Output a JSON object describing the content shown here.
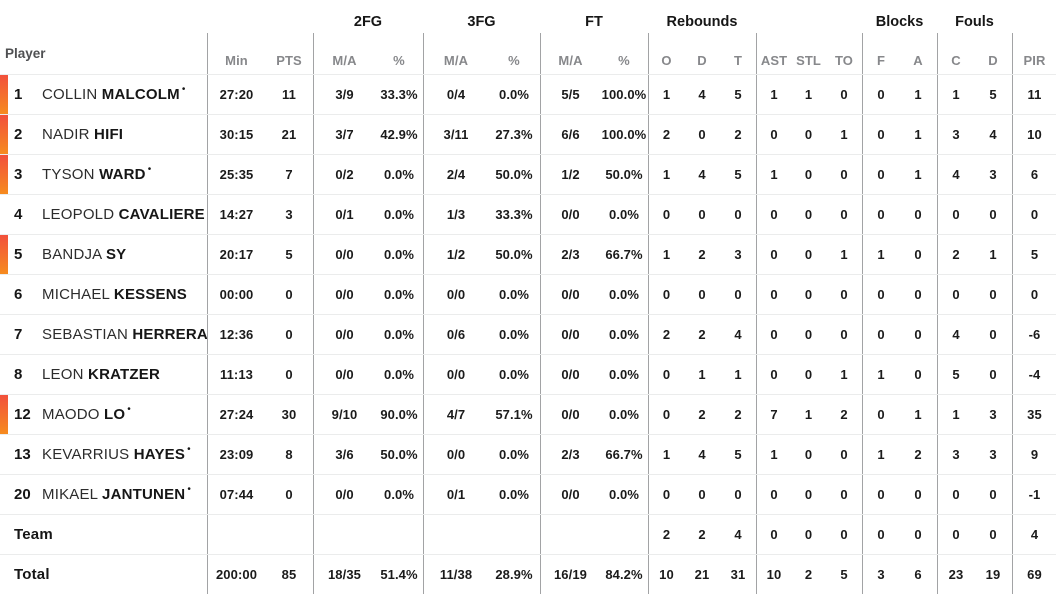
{
  "table": {
    "player_col_label": "Player",
    "starter_mark": "•",
    "groups": [
      {
        "label": "2FG"
      },
      {
        "label": "3FG"
      },
      {
        "label": "FT"
      },
      {
        "label": "Rebounds"
      },
      {
        "label": "Blocks"
      },
      {
        "label": "Fouls"
      }
    ],
    "columns": {
      "min": "Min",
      "pts": "PTS",
      "ma": "M/A",
      "pct": "%",
      "o": "O",
      "d": "D",
      "t": "T",
      "ast": "AST",
      "stl": "STL",
      "to": "TO",
      "bf": "F",
      "ba": "A",
      "fc": "C",
      "fd": "D",
      "pir": "PIR"
    }
  },
  "colors": {
    "accent_orange_top": "#f2503c",
    "accent_orange_bottom": "#f68b1f"
  },
  "rows": [
    {
      "number": "1",
      "first": "COLLIN",
      "last": "MALCOLM",
      "starter": true,
      "on_court": true,
      "min": "27:20",
      "pts": "11",
      "fg2": "3/9",
      "fg2p": "33.3%",
      "fg3": "0/4",
      "fg3p": "0.0%",
      "ft": "5/5",
      "ftp": "100.0%",
      "ro": "1",
      "rd": "4",
      "rt": "5",
      "ast": "1",
      "stl": "1",
      "to": "0",
      "bf": "0",
      "ba": "1",
      "fc": "1",
      "fd": "5",
      "pir": "11"
    },
    {
      "number": "2",
      "first": "NADIR",
      "last": "HIFI",
      "starter": false,
      "on_court": true,
      "min": "30:15",
      "pts": "21",
      "fg2": "3/7",
      "fg2p": "42.9%",
      "fg3": "3/11",
      "fg3p": "27.3%",
      "ft": "6/6",
      "ftp": "100.0%",
      "ro": "2",
      "rd": "0",
      "rt": "2",
      "ast": "0",
      "stl": "0",
      "to": "1",
      "bf": "0",
      "ba": "1",
      "fc": "3",
      "fd": "4",
      "pir": "10"
    },
    {
      "number": "3",
      "first": "TYSON",
      "last": "WARD",
      "starter": true,
      "on_court": true,
      "min": "25:35",
      "pts": "7",
      "fg2": "0/2",
      "fg2p": "0.0%",
      "fg3": "2/4",
      "fg3p": "50.0%",
      "ft": "1/2",
      "ftp": "50.0%",
      "ro": "1",
      "rd": "4",
      "rt": "5",
      "ast": "1",
      "stl": "0",
      "to": "0",
      "bf": "0",
      "ba": "1",
      "fc": "4",
      "fd": "3",
      "pir": "6"
    },
    {
      "number": "4",
      "first": "LEOPOLD",
      "last": "CAVALIERE",
      "starter": false,
      "on_court": false,
      "min": "14:27",
      "pts": "3",
      "fg2": "0/1",
      "fg2p": "0.0%",
      "fg3": "1/3",
      "fg3p": "33.3%",
      "ft": "0/0",
      "ftp": "0.0%",
      "ro": "0",
      "rd": "0",
      "rt": "0",
      "ast": "0",
      "stl": "0",
      "to": "0",
      "bf": "0",
      "ba": "0",
      "fc": "0",
      "fd": "0",
      "pir": "0"
    },
    {
      "number": "5",
      "first": "BANDJA",
      "last": "SY",
      "starter": false,
      "on_court": true,
      "min": "20:17",
      "pts": "5",
      "fg2": "0/0",
      "fg2p": "0.0%",
      "fg3": "1/2",
      "fg3p": "50.0%",
      "ft": "2/3",
      "ftp": "66.7%",
      "ro": "1",
      "rd": "2",
      "rt": "3",
      "ast": "0",
      "stl": "0",
      "to": "1",
      "bf": "1",
      "ba": "0",
      "fc": "2",
      "fd": "1",
      "pir": "5"
    },
    {
      "number": "6",
      "first": "MICHAEL",
      "last": "KESSENS",
      "starter": false,
      "on_court": false,
      "min": "00:00",
      "pts": "0",
      "fg2": "0/0",
      "fg2p": "0.0%",
      "fg3": "0/0",
      "fg3p": "0.0%",
      "ft": "0/0",
      "ftp": "0.0%",
      "ro": "0",
      "rd": "0",
      "rt": "0",
      "ast": "0",
      "stl": "0",
      "to": "0",
      "bf": "0",
      "ba": "0",
      "fc": "0",
      "fd": "0",
      "pir": "0"
    },
    {
      "number": "7",
      "first": "SEBASTIAN",
      "last": "HERRERA",
      "starter": false,
      "on_court": false,
      "min": "12:36",
      "pts": "0",
      "fg2": "0/0",
      "fg2p": "0.0%",
      "fg3": "0/6",
      "fg3p": "0.0%",
      "ft": "0/0",
      "ftp": "0.0%",
      "ro": "2",
      "rd": "2",
      "rt": "4",
      "ast": "0",
      "stl": "0",
      "to": "0",
      "bf": "0",
      "ba": "0",
      "fc": "4",
      "fd": "0",
      "pir": "-6"
    },
    {
      "number": "8",
      "first": "LEON",
      "last": "KRATZER",
      "starter": false,
      "on_court": false,
      "min": "11:13",
      "pts": "0",
      "fg2": "0/0",
      "fg2p": "0.0%",
      "fg3": "0/0",
      "fg3p": "0.0%",
      "ft": "0/0",
      "ftp": "0.0%",
      "ro": "0",
      "rd": "1",
      "rt": "1",
      "ast": "0",
      "stl": "0",
      "to": "1",
      "bf": "1",
      "ba": "0",
      "fc": "5",
      "fd": "0",
      "pir": "-4"
    },
    {
      "number": "12",
      "first": "MAODO",
      "last": "LO",
      "starter": true,
      "on_court": true,
      "min": "27:24",
      "pts": "30",
      "fg2": "9/10",
      "fg2p": "90.0%",
      "fg3": "4/7",
      "fg3p": "57.1%",
      "ft": "0/0",
      "ftp": "0.0%",
      "ro": "0",
      "rd": "2",
      "rt": "2",
      "ast": "7",
      "stl": "1",
      "to": "2",
      "bf": "0",
      "ba": "1",
      "fc": "1",
      "fd": "3",
      "pir": "35"
    },
    {
      "number": "13",
      "first": "KEVARRIUS",
      "last": "HAYES",
      "starter": true,
      "on_court": false,
      "min": "23:09",
      "pts": "8",
      "fg2": "3/6",
      "fg2p": "50.0%",
      "fg3": "0/0",
      "fg3p": "0.0%",
      "ft": "2/3",
      "ftp": "66.7%",
      "ro": "1",
      "rd": "4",
      "rt": "5",
      "ast": "1",
      "stl": "0",
      "to": "0",
      "bf": "1",
      "ba": "2",
      "fc": "3",
      "fd": "3",
      "pir": "9"
    },
    {
      "number": "20",
      "first": "MIKAEL",
      "last": "JANTUNEN",
      "starter": true,
      "on_court": false,
      "min": "07:44",
      "pts": "0",
      "fg2": "0/0",
      "fg2p": "0.0%",
      "fg3": "0/1",
      "fg3p": "0.0%",
      "ft": "0/0",
      "ftp": "0.0%",
      "ro": "0",
      "rd": "0",
      "rt": "0",
      "ast": "0",
      "stl": "0",
      "to": "0",
      "bf": "0",
      "ba": "0",
      "fc": "0",
      "fd": "0",
      "pir": "-1"
    },
    {
      "label": "Team",
      "min": "",
      "pts": "",
      "fg2": "",
      "fg2p": "",
      "fg3": "",
      "fg3p": "",
      "ft": "",
      "ftp": "",
      "ro": "2",
      "rd": "2",
      "rt": "4",
      "ast": "0",
      "stl": "0",
      "to": "0",
      "bf": "0",
      "ba": "0",
      "fc": "0",
      "fd": "0",
      "pir": "4"
    },
    {
      "label": "Total",
      "min": "200:00",
      "pts": "85",
      "fg2": "18/35",
      "fg2p": "51.4%",
      "fg3": "11/38",
      "fg3p": "28.9%",
      "ft": "16/19",
      "ftp": "84.2%",
      "ro": "10",
      "rd": "21",
      "rt": "31",
      "ast": "10",
      "stl": "2",
      "to": "5",
      "bf": "3",
      "ba": "6",
      "fc": "23",
      "fd": "19",
      "pir": "69"
    }
  ]
}
